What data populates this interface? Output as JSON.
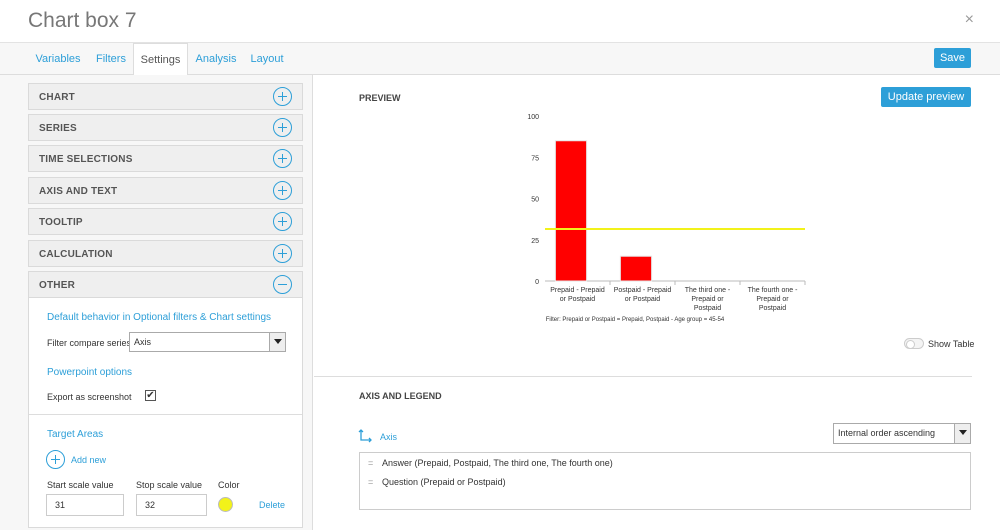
{
  "window": {
    "title": "Chart box 7",
    "close_glyph": "×"
  },
  "tabs": [
    {
      "label": "Variables",
      "active": false
    },
    {
      "label": "Filters",
      "active": false
    },
    {
      "label": "Settings",
      "active": true
    },
    {
      "label": "Analysis",
      "active": false
    },
    {
      "label": "Layout",
      "active": false
    }
  ],
  "save_label": "Save",
  "sections": {
    "chart": "CHART",
    "series": "SERIES",
    "time_selections": "TIME SELECTIONS",
    "axis_and_text": "AXIS AND TEXT",
    "tooltip": "TOOLTIP",
    "calculation": "CALCULATION",
    "other": "OTHER"
  },
  "other": {
    "default_behavior_title": "Default behavior in Optional filters & Chart settings",
    "filter_compare_label": "Filter compare series",
    "filter_compare_value": "Axis",
    "powerpoint_title": "Powerpoint options",
    "export_label": "Export as screenshot",
    "export_checked": true,
    "check_glyph": "✔",
    "target_areas_title": "Target Areas",
    "add_new_label": "Add new",
    "start_label": "Start scale value",
    "stop_label": "Stop scale value",
    "color_label": "Color",
    "start_value": "31",
    "stop_value": "32",
    "target_color": "#f2f21a",
    "delete_label": "Delete"
  },
  "preview": {
    "title": "PREVIEW",
    "update_label": "Update preview",
    "filter_note": "Filter: Prepaid or Postpaid = Prepaid, Postpaid - Age group = 45-54",
    "show_table_label": "Show Table"
  },
  "chart_data": {
    "type": "bar",
    "categories": [
      [
        "Prepaid - Prepaid",
        "or Postpaid"
      ],
      [
        "Postpaid - Prepaid",
        "or Postpaid"
      ],
      [
        "The third one -",
        "Prepaid or",
        "Postpaid"
      ],
      [
        "The fourth one -",
        "Prepaid or",
        "Postpaid"
      ]
    ],
    "values": [
      85,
      15,
      0,
      0
    ],
    "ylim": [
      0,
      100
    ],
    "yticks": [
      0,
      25,
      50,
      75,
      100
    ],
    "target_line": 31.5,
    "bar_color": "#ff0000",
    "target_color": "#f2f21a"
  },
  "axis_legend": {
    "title": "AXIS AND LEGEND",
    "axis_label": "Axis",
    "sort_value": "Internal order ascending",
    "items": [
      "Answer (Prepaid, Postpaid, The third one, The fourth one)",
      "Question (Prepaid or Postpaid)"
    ]
  }
}
